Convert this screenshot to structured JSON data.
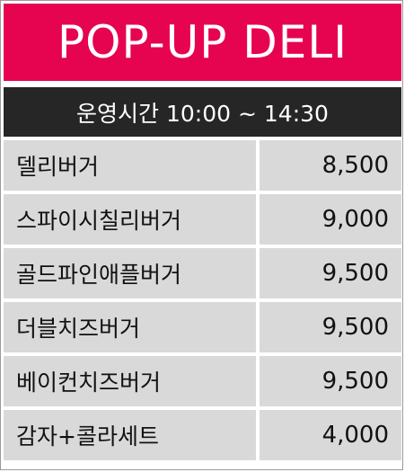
{
  "header": {
    "title": "POP-UP DELI"
  },
  "hours": {
    "label": "운영시간 10:00 ~ 14:30"
  },
  "menu": [
    {
      "name": "델리버거",
      "price": "8,500"
    },
    {
      "name": "스파이시칠리버거",
      "price": "9,000"
    },
    {
      "name": "골드파인애플버거",
      "price": "9,500"
    },
    {
      "name": "더블치즈버거",
      "price": "9,500"
    },
    {
      "name": "베이컨치즈버거",
      "price": "9,500"
    },
    {
      "name": "감자+콜라세트",
      "price": "4,000"
    }
  ],
  "colors": {
    "title_bg": "#e6034f",
    "hours_bg": "#262626",
    "row_bg": "#d9d9d9"
  }
}
